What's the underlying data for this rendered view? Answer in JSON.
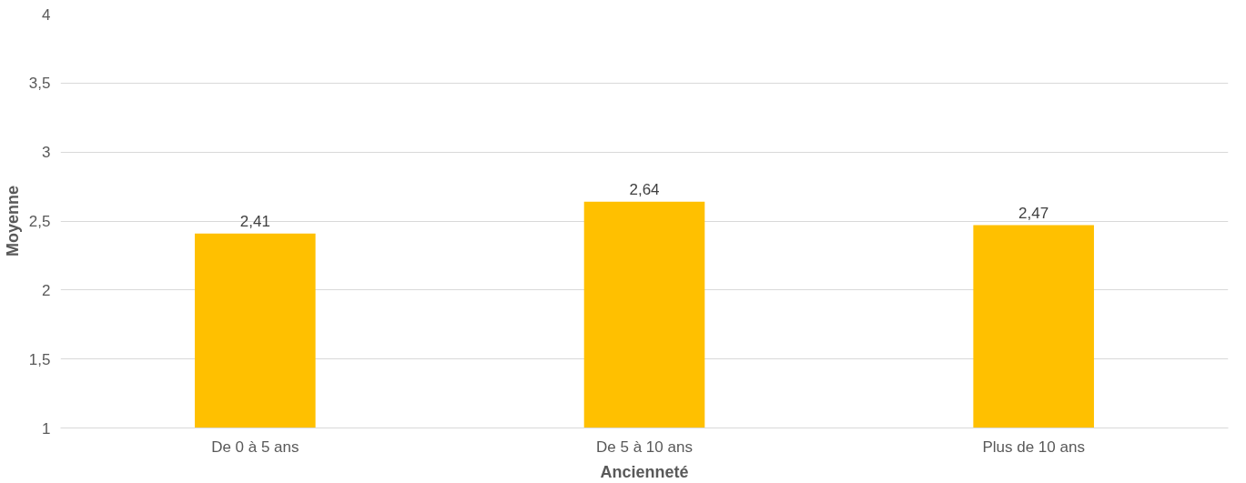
{
  "chart_data": {
    "type": "bar",
    "xlabel": "Ancienneté",
    "ylabel": "Moyenne",
    "categories": [
      "De 0 à 5 ans",
      "De 5 à 10 ans",
      "Plus de 10 ans"
    ],
    "values": [
      2.41,
      2.64,
      2.47
    ],
    "value_labels": [
      "2,41",
      "2,64",
      "2,47"
    ],
    "color": "#ffc000",
    "ylim": [
      1,
      4
    ],
    "yticks": [
      1,
      {
        "value": 1.5,
        "label": "1,5"
      },
      2,
      {
        "value": 2.5,
        "label": "2,5"
      },
      3,
      {
        "value": 3.5,
        "label": "3,5"
      },
      4
    ],
    "grid": "y"
  }
}
